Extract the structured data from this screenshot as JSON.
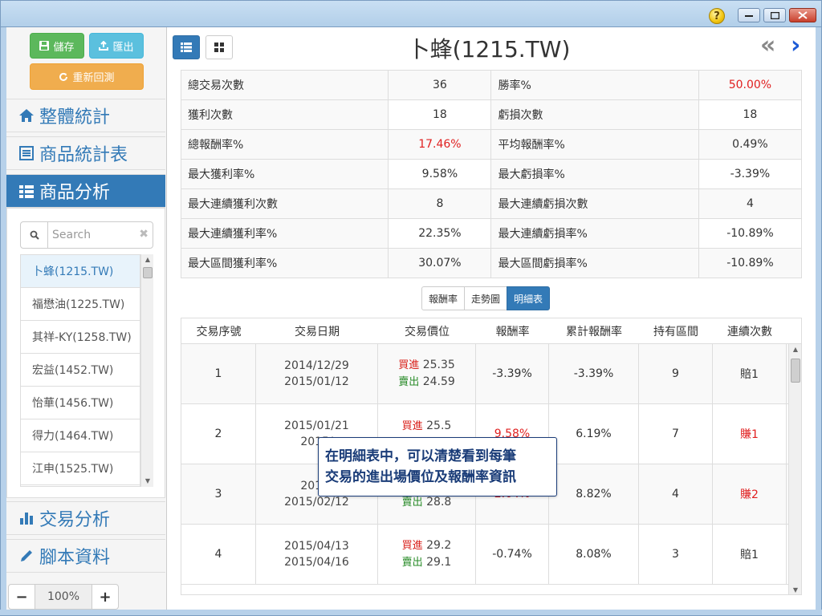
{
  "window": {
    "help_label": "?"
  },
  "toolbar": {
    "save_label": "儲存",
    "export_label": "匯出",
    "rerun_label": "重新回測"
  },
  "nav": {
    "overall": "整體統計",
    "product_table": "商品統計表",
    "product_analysis": "商品分析",
    "trade_analysis": "交易分析",
    "script_data": "腳本資料"
  },
  "search": {
    "placeholder": "Search"
  },
  "products": [
    "卜蜂(1215.TW)",
    "福懋油(1225.TW)",
    "其祥-KY(1258.TW)",
    "宏益(1452.TW)",
    "怡華(1456.TW)",
    "得力(1464.TW)",
    "江申(1525.TW)"
  ],
  "zoom": {
    "minus": "−",
    "value": "100%",
    "plus": "+"
  },
  "header": {
    "title": "卜蜂(1215.TW)",
    "prev": "«",
    "next": "›"
  },
  "stats": [
    {
      "l1": "總交易次數",
      "v1": "36",
      "l2": "勝率%",
      "v2": "50.00%"
    },
    {
      "l1": "獲利次數",
      "v1": "18",
      "l2": "虧損次數",
      "v2": "18"
    },
    {
      "l1": "總報酬率%",
      "v1": "17.46%",
      "l2": "平均報酬率%",
      "v2": "0.49%"
    },
    {
      "l1": "最大獲利率%",
      "v1": "9.58%",
      "l2": "最大虧損率%",
      "v2": "-3.39%"
    },
    {
      "l1": "最大連續獲利次數",
      "v1": "8",
      "l2": "最大連續虧損次數",
      "v2": "4"
    },
    {
      "l1": "最大連續獲利率%",
      "v1": "22.35%",
      "l2": "最大連續虧損率%",
      "v2": "-10.89%"
    },
    {
      "l1": "最大區間獲利率%",
      "v1": "30.07%",
      "l2": "最大區間虧損率%",
      "v2": "-10.89%"
    }
  ],
  "tabs": [
    "報酬率",
    "走勢圖",
    "明細表"
  ],
  "detail": {
    "columns": [
      "交易序號",
      "交易日期",
      "交易價位",
      "報酬率",
      "累計報酬率",
      "持有區間",
      "連續次數"
    ],
    "buy_label": "買進",
    "sell_label": "賣出",
    "rows": [
      {
        "no": "1",
        "d1": "2014/12/29",
        "d2": "2015/01/12",
        "buy": "25.35",
        "sell": "24.59",
        "ret": "-3.39%",
        "cum": "-3.39%",
        "hold": "9",
        "streak": "賠1"
      },
      {
        "no": "2",
        "d1": "2015/01/21",
        "d2": "2015/",
        "buy": "25.5",
        "sell": "",
        "ret": "9.58%",
        "cum": "6.19%",
        "hold": "7",
        "streak": "賺1"
      },
      {
        "no": "3",
        "d1": "2015/",
        "d2": "2015/02/12",
        "buy": "",
        "sell": "28.8",
        "ret": "2.64%",
        "cum": "8.82%",
        "hold": "4",
        "streak": "賺2"
      },
      {
        "no": "4",
        "d1": "2015/04/13",
        "d2": "2015/04/16",
        "buy": "29.2",
        "sell": "29.1",
        "ret": "-0.74%",
        "cum": "8.08%",
        "hold": "3",
        "streak": "賠1"
      }
    ]
  },
  "tooltip": {
    "line1": "在明細表中，可以清楚看到每筆",
    "line2": "交易的進出場價位及報酬率資訊"
  },
  "colors": {
    "primary": "#337ab7",
    "success": "#5cb85c",
    "info": "#5bc0de",
    "warning": "#f0ad4e",
    "loss_red": "#e02020"
  }
}
